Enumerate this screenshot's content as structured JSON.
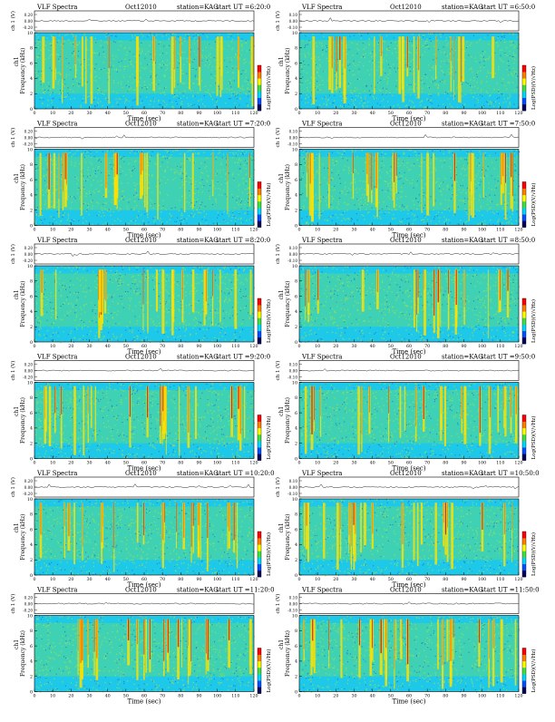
{
  "page": {
    "plot_title": "VLF Spectra",
    "station": "station=KAG",
    "waveform_ylabel": "ch 1 (V)",
    "ylabel": "Frequency (kHz)",
    "ylabel_prefix": "ch1",
    "xlabel": "Time (sec)",
    "colorbar_label": "Log(PSD)(V/√Hz)"
  },
  "chart_data": [
    {
      "type": "heatmap",
      "date": "Oct12010",
      "start_ut": "start UT =6:20:0",
      "x": [
        0,
        10,
        20,
        30,
        40,
        50,
        60,
        70,
        80,
        90,
        100,
        110,
        120
      ],
      "y_freq": [
        0,
        2,
        4,
        6,
        8,
        10
      ],
      "y_wave": [
        "0.20",
        "0.00",
        "-0.20"
      ],
      "xlim": [
        0,
        120
      ],
      "ylim": [
        0,
        10
      ]
    },
    {
      "type": "heatmap",
      "date": "Oct12010",
      "start_ut": "start UT =6:50:0",
      "x": [
        0,
        10,
        20,
        30,
        40,
        50,
        60,
        70,
        80,
        90,
        100,
        110,
        120
      ],
      "y_freq": [
        0,
        2,
        4,
        6,
        8,
        10
      ],
      "y_wave": [
        "0.10",
        "0.00",
        "-0.10"
      ],
      "xlim": [
        0,
        120
      ],
      "ylim": [
        0,
        10
      ]
    },
    {
      "type": "heatmap",
      "date": "Oct12010",
      "start_ut": "start UT =7:20:0",
      "x": [
        0,
        10,
        20,
        30,
        40,
        50,
        60,
        70,
        80,
        90,
        100,
        110,
        120
      ],
      "y_freq": [
        0,
        2,
        4,
        6,
        8,
        10
      ],
      "y_wave": [
        "0.20",
        "0.00",
        "-0.20"
      ],
      "xlim": [
        0,
        120
      ],
      "ylim": [
        0,
        10
      ]
    },
    {
      "type": "heatmap",
      "date": "Oct12010",
      "start_ut": "start UT =7:50:0",
      "x": [
        0,
        10,
        20,
        30,
        40,
        50,
        60,
        70,
        80,
        90,
        100,
        110,
        120
      ],
      "y_freq": [
        0,
        2,
        4,
        6,
        8,
        10
      ],
      "y_wave": [
        "0.10",
        "0.00",
        "-0.10"
      ],
      "xlim": [
        0,
        120
      ],
      "ylim": [
        0,
        10
      ]
    },
    {
      "type": "heatmap",
      "date": "Oct12010",
      "start_ut": "start UT =8:20:0",
      "x": [
        0,
        10,
        20,
        30,
        40,
        50,
        60,
        70,
        80,
        90,
        100,
        110,
        120
      ],
      "y_freq": [
        0,
        2,
        4,
        6,
        8,
        10
      ],
      "y_wave": [
        "0.20",
        "0.00",
        "-0.20"
      ],
      "xlim": [
        0,
        120
      ],
      "ylim": [
        0,
        10
      ]
    },
    {
      "type": "heatmap",
      "date": "Oct12010",
      "start_ut": "start UT =8:50:0",
      "x": [
        0,
        10,
        20,
        30,
        40,
        50,
        60,
        70,
        80,
        90,
        100,
        110,
        120
      ],
      "y_freq": [
        0,
        2,
        4,
        6,
        8,
        10
      ],
      "y_wave": [
        "0.10",
        "0.00",
        "-0.10"
      ],
      "xlim": [
        0,
        120
      ],
      "ylim": [
        0,
        10
      ]
    },
    {
      "type": "heatmap",
      "date": "Oct12010",
      "start_ut": "start UT =9:20:0",
      "x": [
        0,
        10,
        20,
        30,
        40,
        50,
        60,
        70,
        80,
        90,
        100,
        110,
        120
      ],
      "y_freq": [
        0,
        2,
        4,
        6,
        8,
        10
      ],
      "y_wave": [
        "0.20",
        "0.00",
        "-0.20"
      ],
      "xlim": [
        0,
        120
      ],
      "ylim": [
        0,
        10
      ]
    },
    {
      "type": "heatmap",
      "date": "Oct12010",
      "start_ut": "start UT =9:50:0",
      "x": [
        0,
        10,
        20,
        30,
        40,
        50,
        60,
        70,
        80,
        90,
        100,
        110,
        120
      ],
      "y_freq": [
        0,
        2,
        4,
        6,
        8,
        10
      ],
      "y_wave": [
        "0.10",
        "0.00",
        "-0.10"
      ],
      "xlim": [
        0,
        120
      ],
      "ylim": [
        0,
        10
      ]
    },
    {
      "type": "heatmap",
      "date": "Oct12010",
      "start_ut": "start UT =10:20:0",
      "x": [
        0,
        10,
        20,
        30,
        40,
        50,
        60,
        70,
        80,
        90,
        100,
        110,
        120
      ],
      "y_freq": [
        0,
        2,
        4,
        6,
        8,
        10
      ],
      "y_wave": [
        "0.20",
        "0.00",
        "-0.20"
      ],
      "xlim": [
        0,
        120
      ],
      "ylim": [
        0,
        10
      ]
    },
    {
      "type": "heatmap",
      "date": "Oct12010",
      "start_ut": "start UT =10:50:0",
      "x": [
        0,
        10,
        20,
        30,
        40,
        50,
        60,
        70,
        80,
        90,
        100,
        110,
        120
      ],
      "y_freq": [
        0,
        2,
        4,
        6,
        8,
        10
      ],
      "y_wave": [
        "0.10",
        "0.00",
        "-0.10"
      ],
      "xlim": [
        0,
        120
      ],
      "ylim": [
        0,
        10
      ]
    },
    {
      "type": "heatmap",
      "date": "Oct12010",
      "start_ut": "start UT =11:20:0",
      "x": [
        0,
        10,
        20,
        30,
        40,
        50,
        60,
        70,
        80,
        90,
        100,
        110,
        120
      ],
      "y_freq": [
        0,
        2,
        4,
        6,
        8,
        10
      ],
      "y_wave": [
        "0.20",
        "0.00",
        "-0.20"
      ],
      "xlim": [
        0,
        120
      ],
      "ylim": [
        0,
        10
      ]
    },
    {
      "type": "heatmap",
      "date": "Oct12010",
      "start_ut": "start UT =11:50:0",
      "x": [
        0,
        10,
        20,
        30,
        40,
        50,
        60,
        70,
        80,
        90,
        100,
        110,
        120
      ],
      "y_freq": [
        0,
        2,
        4,
        6,
        8,
        10
      ],
      "y_wave": [
        "0.10",
        "0.00",
        "-0.10"
      ],
      "xlim": [
        0,
        120
      ],
      "ylim": [
        0,
        10
      ]
    }
  ],
  "colors": {
    "background": "#1ec8e8",
    "noise": [
      "#1ec8e8",
      "#3fd8a8",
      "#8cdc3c",
      "#ffe000",
      "#ff8800",
      "#e01010",
      "#1a50d0"
    ],
    "colorbar": [
      "#00005a",
      "#0050ff",
      "#00d8ff",
      "#40e040",
      "#ffff00",
      "#ff8000",
      "#ff0000"
    ]
  }
}
